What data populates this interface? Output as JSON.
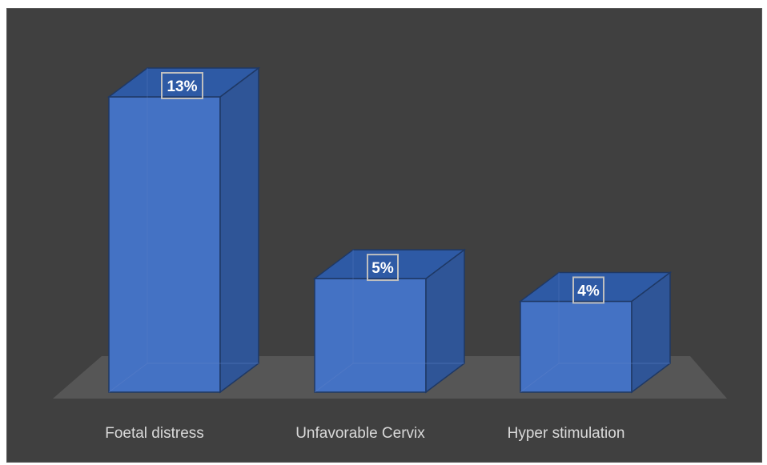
{
  "chart_data": {
    "type": "bar",
    "style": "3d-column",
    "categories": [
      "Foetal distress",
      "Unfavorable Cervix",
      "Hyper stimulation"
    ],
    "values": [
      13,
      5,
      4
    ],
    "data_labels": [
      "13%",
      "5%",
      "4%"
    ],
    "unit": "%",
    "title": "",
    "xlabel": "",
    "ylabel": "",
    "ylim": [
      0,
      14
    ],
    "grid": false,
    "legend": "none",
    "colors": {
      "background": "#404040",
      "bar_front": "#4472c4",
      "bar_side": "#2f5597",
      "bar_top": "#2e5aa5",
      "bar_edge": "#1f3864",
      "floor": "#5a5a5a",
      "category_text": "#d9d9d9",
      "label_text": "#ffffff",
      "label_border": "#bfbfbf"
    }
  }
}
